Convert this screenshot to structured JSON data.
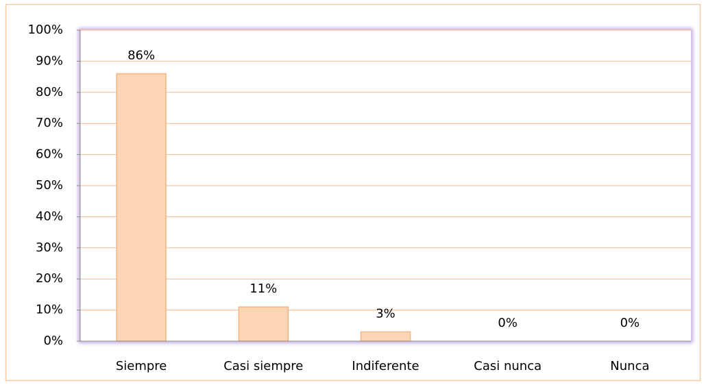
{
  "chart_data": {
    "type": "bar",
    "categories": [
      "Siempre",
      "Casi siempre",
      "Indiferente",
      "Casi nunca",
      "Nunca"
    ],
    "values": [
      86,
      11,
      3,
      0,
      0
    ],
    "value_labels": [
      "86%",
      "11%",
      "3%",
      "0%",
      "0%"
    ],
    "color": "#fcd5b5",
    "ylim": [
      0,
      100
    ],
    "yticks": [
      {
        "value": 0,
        "label": "0%"
      },
      {
        "value": 10,
        "label": "10%"
      },
      {
        "value": 20,
        "label": "20%"
      },
      {
        "value": 30,
        "label": "30%"
      },
      {
        "value": 40,
        "label": "40%"
      },
      {
        "value": 50,
        "label": "50%"
      },
      {
        "value": 60,
        "label": "60%"
      },
      {
        "value": 70,
        "label": "70%"
      },
      {
        "value": 80,
        "label": "80%"
      },
      {
        "value": 90,
        "label": "90%"
      },
      {
        "value": 100,
        "label": "100%"
      }
    ],
    "grid": true
  }
}
